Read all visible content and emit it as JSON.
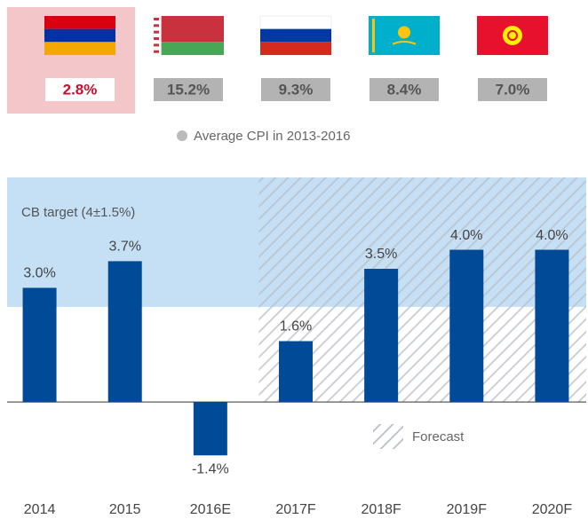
{
  "chart_data": [
    {
      "type": "flags",
      "values": [
        2.8,
        15.2,
        9.3,
        8.4,
        7.0
      ],
      "value_labels": [
        "2.8%",
        "15.2%",
        "9.3%",
        "8.4%",
        "7.0%"
      ],
      "highlight": 0,
      "legend": "Average CPI in 2013-2016"
    },
    {
      "type": "bar",
      "categories": [
        "2014",
        "2015",
        "2016E",
        "2017F",
        "2018F",
        "2019F",
        "2020F"
      ],
      "values": [
        3.0,
        3.7,
        -1.4,
        1.6,
        3.5,
        4.0,
        4.0
      ],
      "value_labels": [
        "3.0%",
        "3.7%",
        "-1.4%",
        "1.6%",
        "3.5%",
        "4.0%",
        "4.0%"
      ],
      "color": "#004a97",
      "ylim": [
        -2,
        5.9
      ],
      "band_from": 2.5,
      "band_label": "CB target (4±1.5%)",
      "forecast_start": 3,
      "forecast_label": "Forecast"
    }
  ]
}
